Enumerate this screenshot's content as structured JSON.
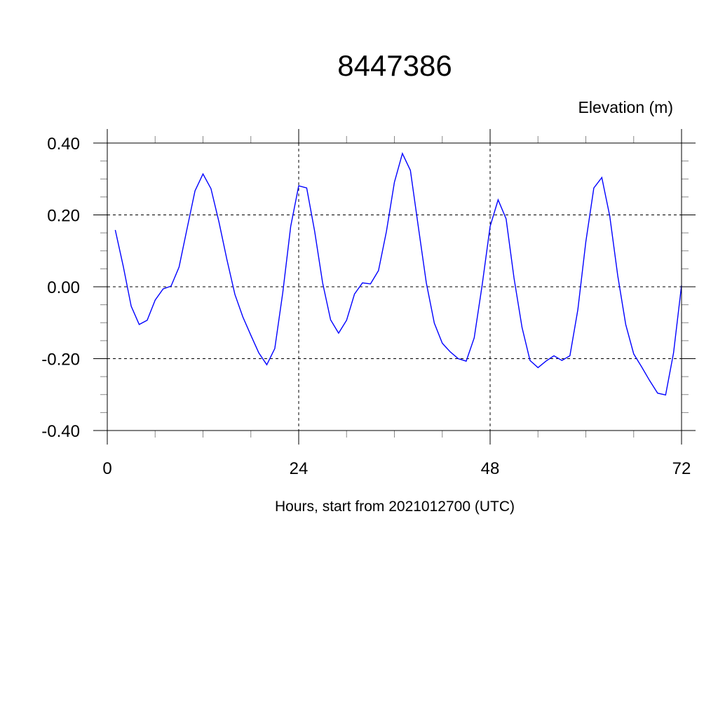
{
  "chart_data": {
    "type": "line",
    "title": "8447386",
    "subtitle_right": "Elevation (m)",
    "xlabel": "Hours, start from 2021012700 (UTC)",
    "ylabel": "",
    "xlim": [
      0,
      72
    ],
    "ylim": [
      -0.4,
      0.4
    ],
    "x_ticks": [
      0,
      24,
      48,
      72
    ],
    "x_tick_labels": [
      "0",
      "24",
      "48",
      "72"
    ],
    "y_ticks": [
      -0.4,
      -0.2,
      0,
      0.2,
      0.4
    ],
    "y_tick_labels": [
      "-0.40",
      "-0.20",
      "0.00",
      "0.20",
      "0.40"
    ],
    "grid": true,
    "line_color": "#0000ff",
    "series": [
      {
        "x": [
          1,
          2,
          3,
          4,
          5,
          6,
          7,
          8,
          9,
          10,
          11,
          12,
          13,
          14,
          15,
          16,
          17,
          18,
          19,
          20,
          21,
          22,
          23,
          24,
          25,
          26,
          27,
          28,
          29,
          30,
          31,
          32,
          33,
          34,
          35,
          36,
          37,
          38,
          39,
          40,
          41,
          42,
          43,
          44,
          45,
          46,
          47,
          48,
          49,
          50,
          51,
          52,
          53,
          54,
          55,
          56,
          57,
          58,
          59,
          60,
          61,
          62,
          63,
          64,
          65,
          66,
          67,
          68,
          69,
          70,
          71,
          72
        ],
        "values": [
          0.158,
          0.057,
          -0.054,
          -0.105,
          -0.093,
          -0.037,
          -0.006,
          0.002,
          0.055,
          0.162,
          0.267,
          0.314,
          0.273,
          0.18,
          0.076,
          -0.021,
          -0.084,
          -0.135,
          -0.184,
          -0.217,
          -0.172,
          -0.016,
          0.168,
          0.281,
          0.275,
          0.154,
          0.011,
          -0.092,
          -0.129,
          -0.093,
          -0.02,
          0.011,
          0.008,
          0.045,
          0.154,
          0.291,
          0.371,
          0.324,
          0.167,
          0.011,
          -0.101,
          -0.157,
          -0.181,
          -0.2,
          -0.207,
          -0.142,
          0.004,
          0.168,
          0.242,
          0.189,
          0.024,
          -0.113,
          -0.205,
          -0.225,
          -0.207,
          -0.192,
          -0.205,
          -0.192,
          -0.064,
          0.125,
          0.275,
          0.304,
          0.197,
          0.031,
          -0.105,
          -0.187,
          -0.223,
          -0.261,
          -0.296,
          -0.301,
          -0.184,
          0.004
        ]
      }
    ]
  }
}
